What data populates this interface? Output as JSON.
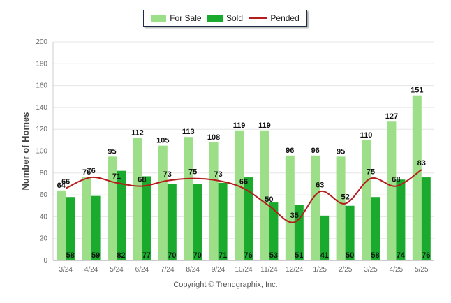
{
  "chart_data": {
    "type": "bar",
    "categories": [
      "3/24",
      "4/24",
      "5/24",
      "6/24",
      "7/24",
      "8/24",
      "9/24",
      "10/24",
      "11/24",
      "12/24",
      "1/25",
      "2/25",
      "3/25",
      "4/25",
      "5/25"
    ],
    "series": [
      {
        "name": "For Sale",
        "type": "bar",
        "color": "#9ddf88",
        "values": [
          64,
          76,
          95,
          112,
          105,
          113,
          108,
          119,
          119,
          96,
          96,
          95,
          110,
          127,
          151
        ]
      },
      {
        "name": "Sold",
        "type": "bar",
        "color": "#1aaa2e",
        "values": [
          58,
          59,
          82,
          77,
          70,
          70,
          71,
          76,
          53,
          51,
          41,
          50,
          58,
          74,
          76
        ]
      },
      {
        "name": "Pended",
        "type": "line",
        "color": "#b51c1c",
        "values": [
          66,
          76,
          71,
          68,
          73,
          75,
          73,
          66,
          50,
          35,
          63,
          52,
          75,
          68,
          83
        ]
      }
    ],
    "ylabel": "Number of Homes",
    "ylim": [
      0,
      200
    ],
    "yticks": [
      0,
      20,
      40,
      60,
      80,
      100,
      120,
      140,
      160,
      180,
      200
    ],
    "grid": true,
    "legend_position": "top"
  },
  "legend": {
    "for_sale": "For Sale",
    "sold": "Sold",
    "pended": "Pended"
  },
  "footer": {
    "copyright": "Copyright © Trendgraphix, Inc."
  }
}
